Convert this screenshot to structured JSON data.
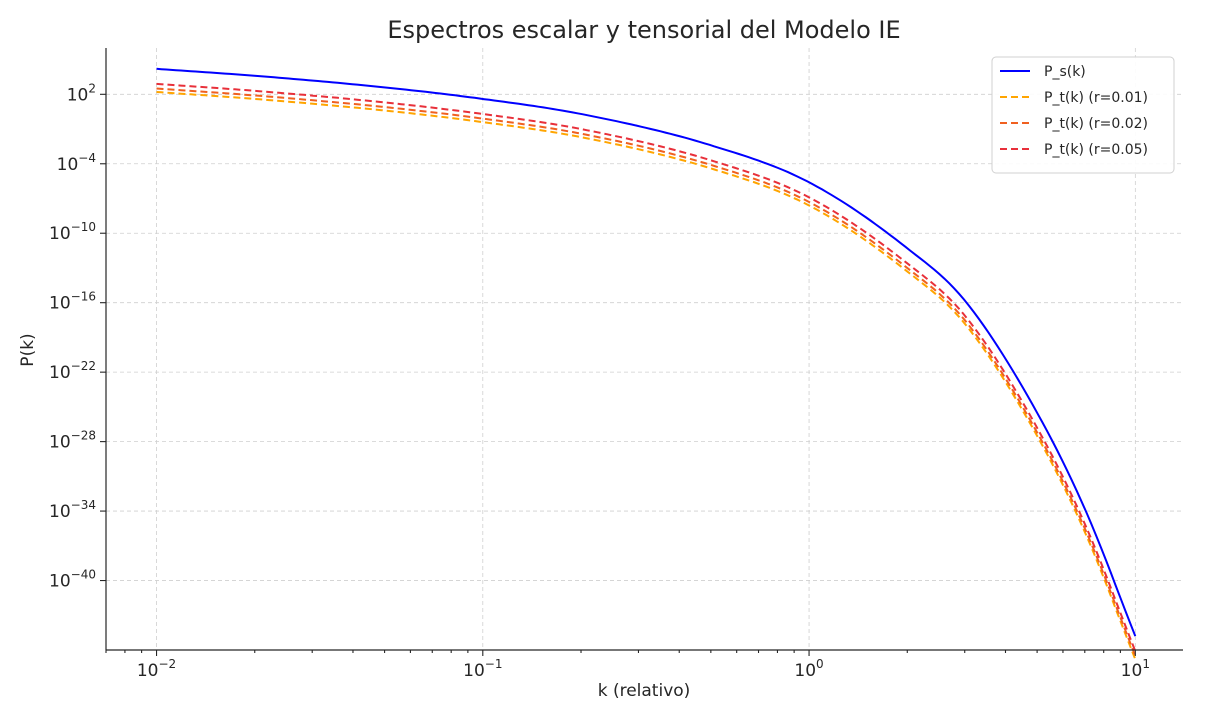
{
  "chart_data": {
    "type": "line",
    "title": "Espectros escalar y tensorial del Modelo IE",
    "xlabel": "k (relativo)",
    "ylabel": "P(k)",
    "xscale": "log",
    "yscale": "log",
    "xlim": [
      0.007,
      14
    ],
    "ylim_log10": [
      -46,
      6
    ],
    "x_ticks": [
      {
        "base": "10",
        "exp": "−2",
        "value": 0.01
      },
      {
        "base": "10",
        "exp": "−1",
        "value": 0.1
      },
      {
        "base": "10",
        "exp": "0",
        "value": 1
      },
      {
        "base": "10",
        "exp": "1",
        "value": 10
      }
    ],
    "y_ticks": [
      {
        "base": "10",
        "exp": "2",
        "log10": 2
      },
      {
        "base": "10",
        "exp": "−4",
        "log10": -4
      },
      {
        "base": "10",
        "exp": "−10",
        "log10": -10
      },
      {
        "base": "10",
        "exp": "−16",
        "log10": -16
      },
      {
        "base": "10",
        "exp": "−22",
        "log10": -22
      },
      {
        "base": "10",
        "exp": "−28",
        "log10": -28
      },
      {
        "base": "10",
        "exp": "−34",
        "log10": -34
      },
      {
        "base": "10",
        "exp": "−40",
        "log10": -40
      }
    ],
    "grid": true,
    "legend_position": "top-right",
    "x": [
      0.01,
      0.02,
      0.05,
      0.1,
      0.2,
      0.5,
      1,
      2,
      3,
      5,
      7,
      10
    ],
    "series": [
      {
        "name": "P_s(k)",
        "color": "#0000ff",
        "style": "solid",
        "log10_values": [
          4.2,
          3.6,
          2.6,
          1.6,
          0.3,
          -2.4,
          -5.6,
          -11.3,
          -15.8,
          -25.5,
          -33.8,
          -44.8
        ]
      },
      {
        "name": "P_t(k) (r=0.01)",
        "color": "#ffa500",
        "style": "dashed",
        "log10_values": [
          2.2,
          1.6,
          0.6,
          -0.4,
          -1.7,
          -4.4,
          -7.6,
          -13.3,
          -17.8,
          -27.5,
          -35.8,
          -46.8
        ]
      },
      {
        "name": "P_t(k) (r=0.02)",
        "color": "#f06020",
        "style": "dashed",
        "log10_values": [
          2.5,
          1.9,
          0.9,
          -0.1,
          -1.4,
          -4.1,
          -7.3,
          -13.0,
          -17.5,
          -27.2,
          -35.5,
          -46.5
        ]
      },
      {
        "name": "P_t(k) (r=0.05)",
        "color": "#e8303a",
        "style": "dashed",
        "log10_values": [
          2.9,
          2.3,
          1.3,
          0.3,
          -1.0,
          -3.7,
          -6.9,
          -12.6,
          -17.1,
          -26.8,
          -35.1,
          -46.1
        ]
      }
    ]
  }
}
